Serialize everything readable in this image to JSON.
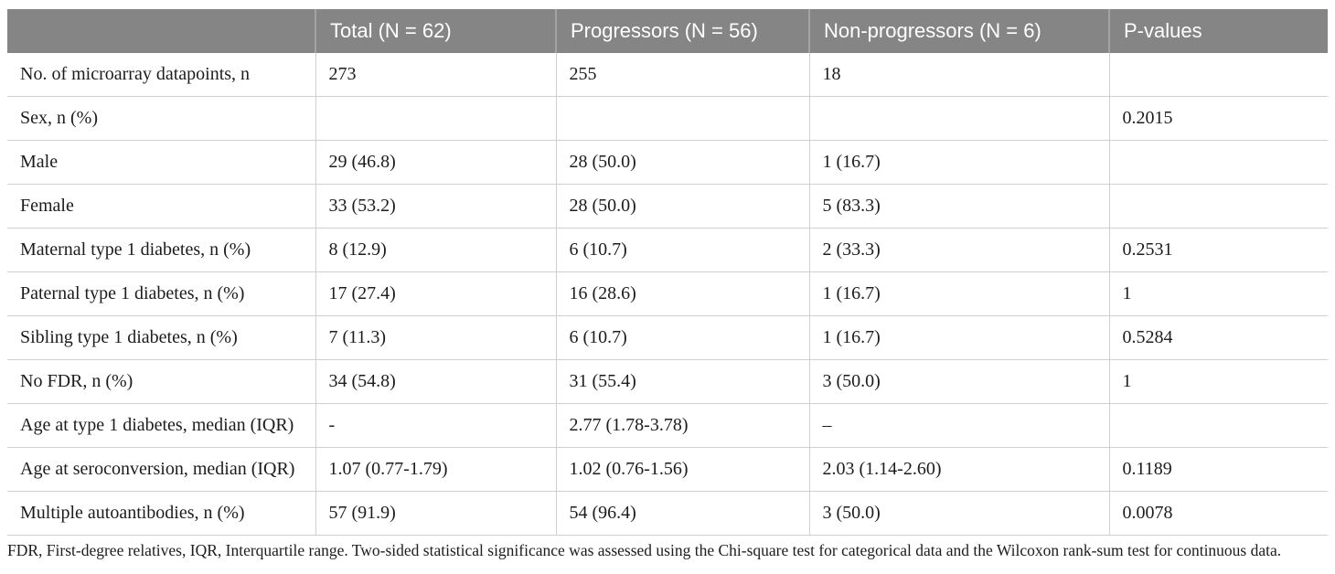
{
  "table": {
    "columns": {
      "label": "",
      "total": "Total (N = 62)",
      "progressors": "Progressors (N = 56)",
      "non_progressors": "Non-progressors (N = 6)",
      "p_values": "P-values"
    },
    "rows": [
      {
        "label": "No. of microarray datapoints, n",
        "total": "273",
        "progressors": "255",
        "non_progressors": "18",
        "p_value": ""
      },
      {
        "label": "Sex, n (%)",
        "total": "",
        "progressors": "",
        "non_progressors": "",
        "p_value": "0.2015"
      },
      {
        "label": "Male",
        "total": "29 (46.8)",
        "progressors": "28 (50.0)",
        "non_progressors": "1 (16.7)",
        "p_value": ""
      },
      {
        "label": "Female",
        "total": "33 (53.2)",
        "progressors": "28 (50.0)",
        "non_progressors": "5 (83.3)",
        "p_value": ""
      },
      {
        "label": "Maternal type 1 diabetes, n (%)",
        "total": "8 (12.9)",
        "progressors": "6 (10.7)",
        "non_progressors": "2 (33.3)",
        "p_value": "0.2531"
      },
      {
        "label": "Paternal type 1 diabetes, n (%)",
        "total": "17 (27.4)",
        "progressors": "16 (28.6)",
        "non_progressors": "1 (16.7)",
        "p_value": "1"
      },
      {
        "label": "Sibling type 1 diabetes, n (%)",
        "total": "7 (11.3)",
        "progressors": "6 (10.7)",
        "non_progressors": "1 (16.7)",
        "p_value": "0.5284"
      },
      {
        "label": "No FDR, n (%)",
        "total": "34 (54.8)",
        "progressors": "31 (55.4)",
        "non_progressors": "3 (50.0)",
        "p_value": "1"
      },
      {
        "label": "Age at type 1 diabetes, median (IQR)",
        "total": "-",
        "progressors": "2.77 (1.78-3.78)",
        "non_progressors": "–",
        "p_value": ""
      },
      {
        "label": "Age at seroconversion, median (IQR)",
        "total": "1.07 (0.77-1.79)",
        "progressors": "1.02 (0.76-1.56)",
        "non_progressors": "2.03 (1.14-2.60)",
        "p_value": "0.1189"
      },
      {
        "label": "Multiple autoantibodies, n (%)",
        "total": "57 (91.9)",
        "progressors": "54 (96.4)",
        "non_progressors": "3 (50.0)",
        "p_value": "0.0078"
      }
    ],
    "footnote": "FDR, First-degree relatives, IQR, Interquartile range. Two-sided statistical significance was assessed using the Chi-square test for categorical data and the Wilcoxon rank-sum test for continuous data.",
    "colors": {
      "header_bg": "#858585",
      "header_text": "#ffffff",
      "row_border": "#cfcfcf",
      "body_text": "#1c1c1c"
    }
  }
}
